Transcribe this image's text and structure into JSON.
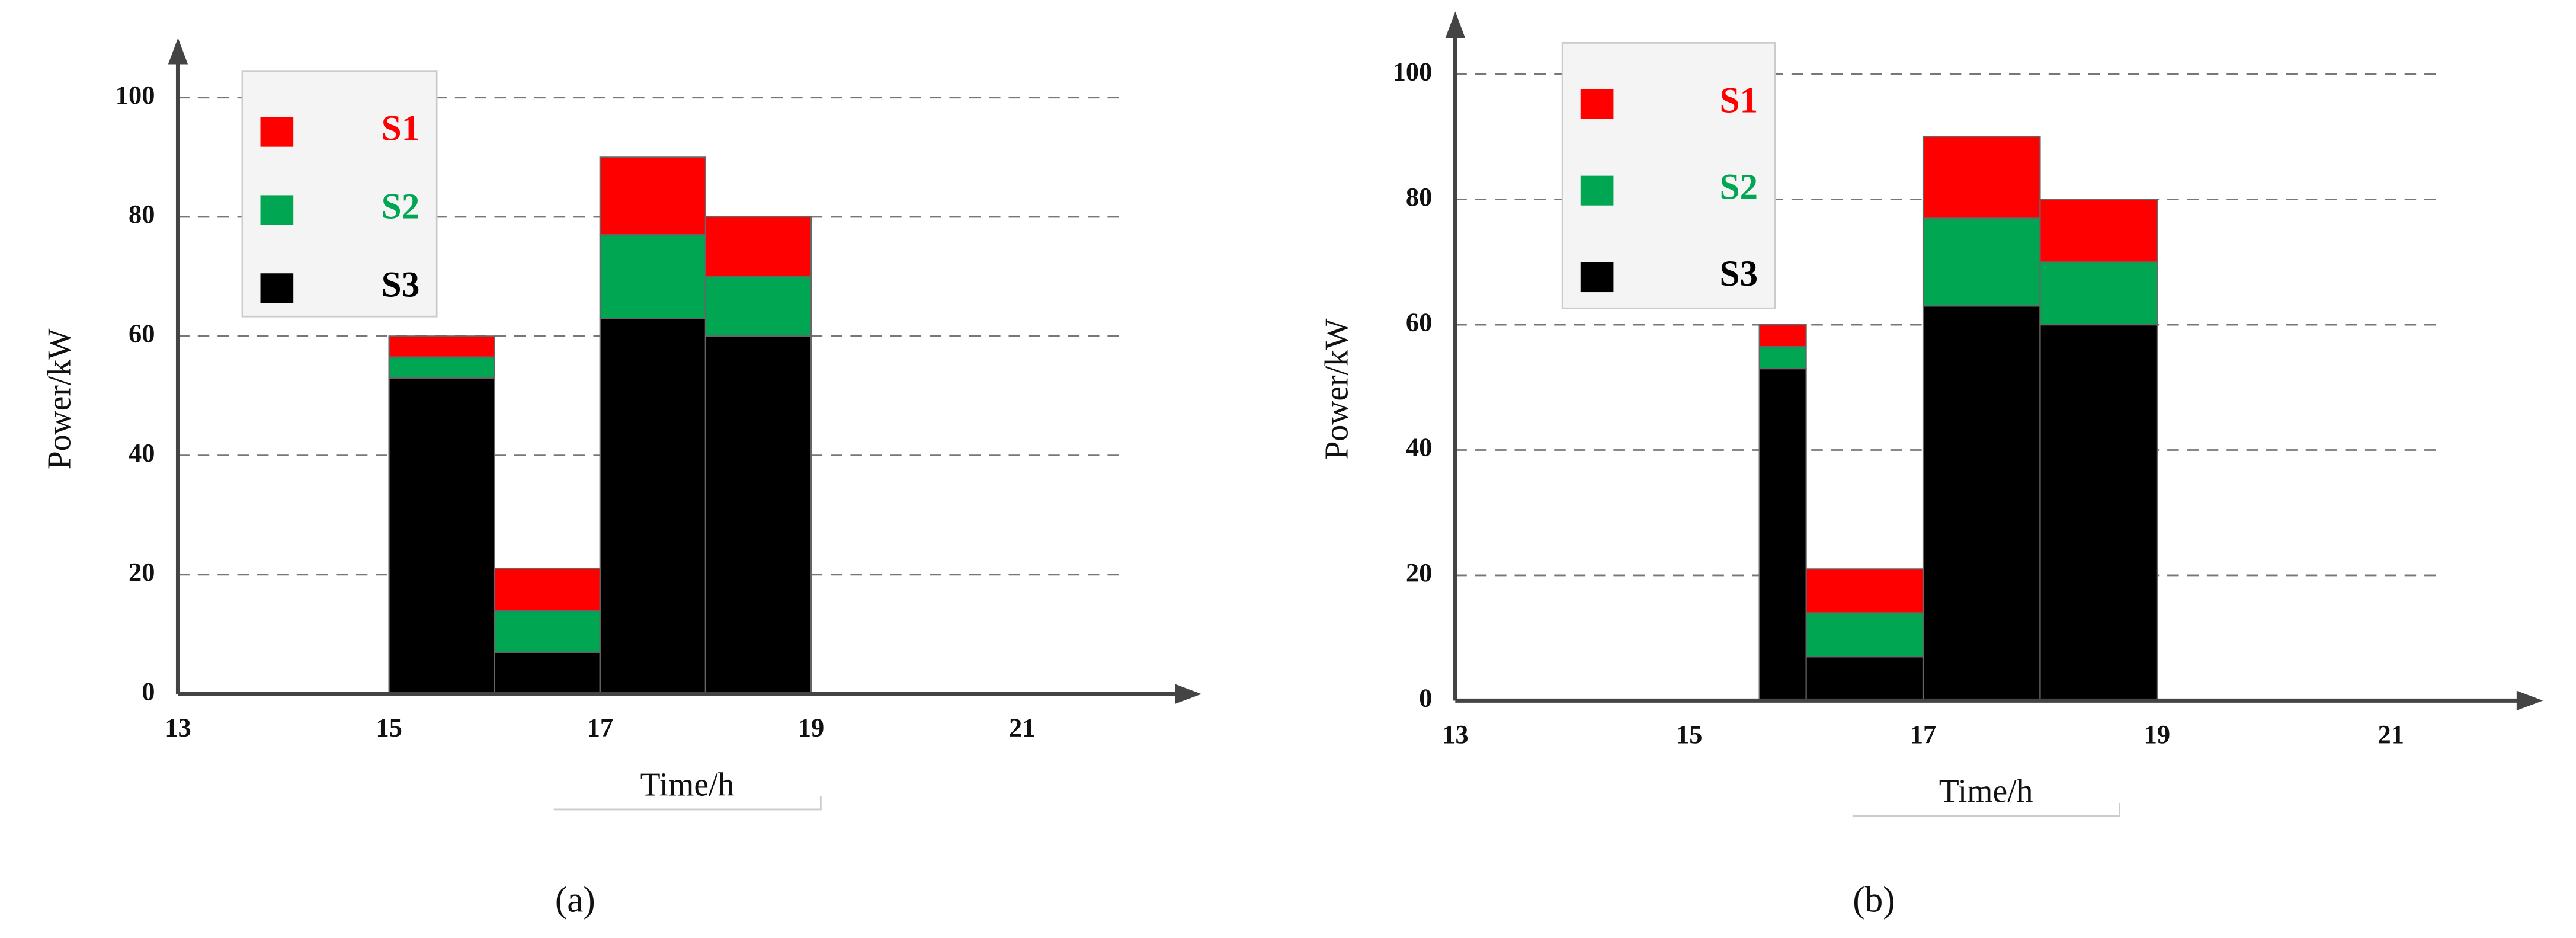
{
  "chart_data": [
    {
      "type": "histogram",
      "label": "(a)",
      "xlabel": "Time/h",
      "ylabel": "Power/kW",
      "bins": [
        15,
        16,
        17,
        18,
        19
      ],
      "series": [
        {
          "name": "S1",
          "color": "#ff0000",
          "values": [
            3.5,
            7,
            13,
            10
          ]
        },
        {
          "name": "S2",
          "color": "#00a651",
          "values": [
            3.5,
            7,
            14,
            10
          ]
        },
        {
          "name": "S3",
          "color": "#000000",
          "values": [
            53,
            7,
            63,
            60
          ]
        }
      ],
      "xlim": [
        13,
        22.7
      ],
      "ylim": [
        0,
        110
      ],
      "xticks": [
        13,
        15,
        17,
        19,
        21
      ],
      "yticks": [
        0,
        20,
        40,
        60,
        80,
        100
      ],
      "grid": true,
      "legend": "upper left"
    },
    {
      "type": "histogram",
      "label": "(b)",
      "xlabel": "Time/h",
      "ylabel": "Power/kW",
      "bins": [
        15.6,
        16,
        17,
        18,
        19
      ],
      "series": [
        {
          "name": "S1",
          "color": "#ff0000",
          "values": [
            3.5,
            7,
            13,
            10
          ]
        },
        {
          "name": "S2",
          "color": "#00a651",
          "values": [
            3.5,
            7,
            14,
            10
          ]
        },
        {
          "name": "S3",
          "color": "#000000",
          "values": [
            53,
            7,
            63,
            60
          ]
        }
      ],
      "xlim": [
        13,
        22.3
      ],
      "ylim": [
        0,
        110
      ],
      "xticks": [
        13,
        15,
        17,
        19,
        21
      ],
      "yticks": [
        0,
        20,
        40,
        60,
        80,
        100
      ],
      "grid": true,
      "legend": "upper left"
    }
  ]
}
